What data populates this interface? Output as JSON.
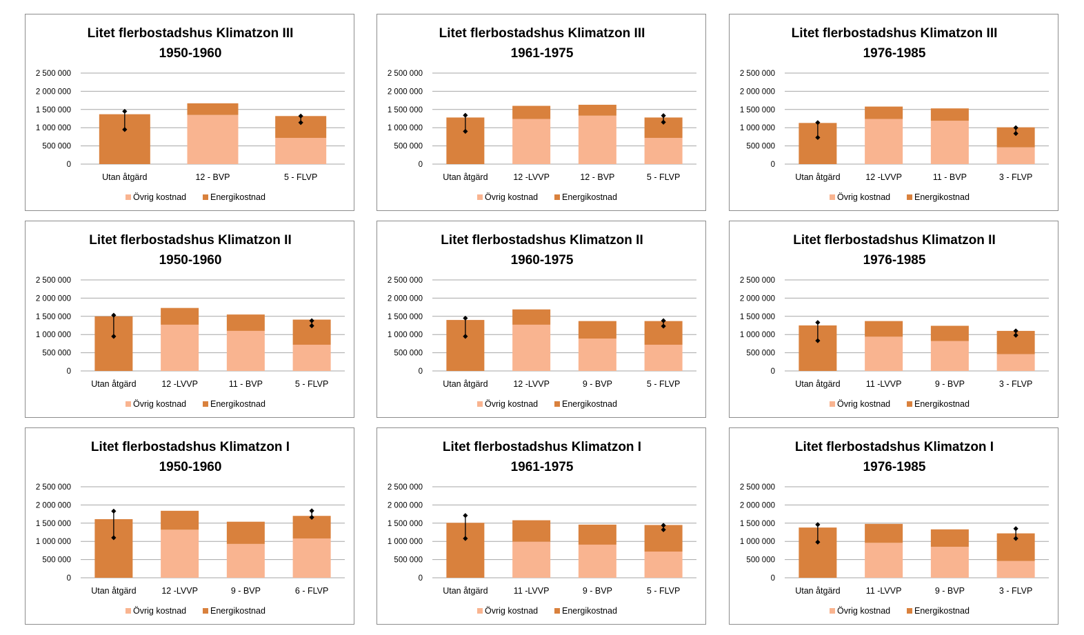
{
  "colors": {
    "ovrig": "#F9B490",
    "energi": "#D9813D",
    "grid": "#a6a6a6",
    "marker": "#000000"
  },
  "chart_data": [
    {
      "type": "bar",
      "stacked": true,
      "title": [
        "Litet flerbostadshus Klimatzon III",
        "1950-1960"
      ],
      "categories": [
        "Utan åtgärd",
        "12 - BVP",
        "5 - FLVP"
      ],
      "series": [
        {
          "name": "Övrig kostnad",
          "values": [
            0,
            1350000,
            720000
          ]
        },
        {
          "name": "Energikostnad",
          "values": [
            1370000,
            320000,
            600000
          ]
        }
      ],
      "range_markers": [
        {
          "category": "Utan åtgärd",
          "low": 950000,
          "high": 1450000
        },
        {
          "category": "5 - FLVP",
          "low": 1140000,
          "high": 1320000
        }
      ],
      "yticks": [
        "0",
        "500 000",
        "1 000 000",
        "1 500 000",
        "2 000 000",
        "2 500 000"
      ],
      "ylim": [
        0,
        2500000
      ],
      "grid": true,
      "legend": "bottom"
    },
    {
      "type": "bar",
      "stacked": true,
      "title": [
        "Litet flerbostadshus Klimatzon III",
        "1961-1975"
      ],
      "categories": [
        "Utan åtgärd",
        "12 -LVVP",
        "12 - BVP",
        "5 - FLVP"
      ],
      "series": [
        {
          "name": "Övrig kostnad",
          "values": [
            0,
            1240000,
            1330000,
            720000
          ]
        },
        {
          "name": "Energikostnad",
          "values": [
            1280000,
            360000,
            300000,
            560000
          ]
        }
      ],
      "range_markers": [
        {
          "category": "Utan åtgärd",
          "low": 900000,
          "high": 1340000
        },
        {
          "category": "5 - FLVP",
          "low": 1150000,
          "high": 1330000
        }
      ],
      "yticks": [
        "0",
        "500 000",
        "1 000 000",
        "1 500 000",
        "2 000 000",
        "2 500 000"
      ],
      "ylim": [
        0,
        2500000
      ],
      "grid": true,
      "legend": "bottom"
    },
    {
      "type": "bar",
      "stacked": true,
      "title": [
        "Litet flerbostadshus Klimatzon III",
        "1976-1985"
      ],
      "categories": [
        "Utan åtgärd",
        "12 -LVVP",
        "11 - BVP",
        "3 - FLVP"
      ],
      "series": [
        {
          "name": "Övrig kostnad",
          "values": [
            0,
            1240000,
            1190000,
            460000
          ]
        },
        {
          "name": "Energikostnad",
          "values": [
            1130000,
            340000,
            340000,
            550000
          ]
        }
      ],
      "range_markers": [
        {
          "category": "Utan åtgärd",
          "low": 730000,
          "high": 1140000
        },
        {
          "category": "3 - FLVP",
          "low": 840000,
          "high": 1000000
        }
      ],
      "yticks": [
        "0",
        "500 000",
        "1 000 000",
        "1 500 000",
        "2 000 000",
        "2 500 000"
      ],
      "ylim": [
        0,
        2500000
      ],
      "grid": true,
      "legend": "bottom"
    },
    {
      "type": "bar",
      "stacked": true,
      "title": [
        "Litet flerbostadshus Klimatzon II",
        "1950-1960"
      ],
      "categories": [
        "Utan åtgärd",
        "12 -LVVP",
        "11 - BVP",
        "5 - FLVP"
      ],
      "series": [
        {
          "name": "Övrig kostnad",
          "values": [
            0,
            1270000,
            1100000,
            720000
          ]
        },
        {
          "name": "Energikostnad",
          "values": [
            1500000,
            460000,
            450000,
            690000
          ]
        }
      ],
      "range_markers": [
        {
          "category": "Utan åtgärd",
          "low": 950000,
          "high": 1530000
        },
        {
          "category": "5 - FLVP",
          "low": 1240000,
          "high": 1380000
        }
      ],
      "yticks": [
        "0",
        "500 000",
        "1 000 000",
        "1 500 000",
        "2 000 000",
        "2 500 000"
      ],
      "ylim": [
        0,
        2500000
      ],
      "grid": true,
      "legend": "bottom"
    },
    {
      "type": "bar",
      "stacked": true,
      "title": [
        "Litet flerbostadshus Klimatzon II",
        "1960-1975"
      ],
      "categories": [
        "Utan åtgärd",
        "12 -LVVP",
        "9 - BVP",
        "5 - FLVP"
      ],
      "series": [
        {
          "name": "Övrig kostnad",
          "values": [
            0,
            1270000,
            890000,
            720000
          ]
        },
        {
          "name": "Energikostnad",
          "values": [
            1400000,
            420000,
            480000,
            650000
          ]
        }
      ],
      "range_markers": [
        {
          "category": "Utan åtgärd",
          "low": 950000,
          "high": 1450000
        },
        {
          "category": "5 - FLVP",
          "low": 1230000,
          "high": 1380000
        }
      ],
      "yticks": [
        "0",
        "500 000",
        "1 000 000",
        "1 500 000",
        "2 000 000",
        "2 500 000"
      ],
      "ylim": [
        0,
        2500000
      ],
      "grid": true,
      "legend": "bottom"
    },
    {
      "type": "bar",
      "stacked": true,
      "title": [
        "Litet flerbostadshus Klimatzon II",
        "1976-1985"
      ],
      "categories": [
        "Utan åtgärd",
        "11 -LVVP",
        "9 - BVP",
        "3 - FLVP"
      ],
      "series": [
        {
          "name": "Övrig kostnad",
          "values": [
            0,
            940000,
            820000,
            460000
          ]
        },
        {
          "name": "Energikostnad",
          "values": [
            1250000,
            430000,
            420000,
            640000
          ]
        }
      ],
      "range_markers": [
        {
          "category": "Utan åtgärd",
          "low": 830000,
          "high": 1330000
        },
        {
          "category": "3 - FLVP",
          "low": 980000,
          "high": 1100000
        }
      ],
      "yticks": [
        "0",
        "500 000",
        "1 000 000",
        "1 500 000",
        "2 000 000",
        "2 500 000"
      ],
      "ylim": [
        0,
        2500000
      ],
      "grid": true,
      "legend": "bottom"
    },
    {
      "type": "bar",
      "stacked": true,
      "title": [
        "Litet flerbostadshus Klimatzon I",
        "1950-1960"
      ],
      "categories": [
        "Utan åtgärd",
        "12 -LVVP",
        "9 - BVP",
        "6 - FLVP"
      ],
      "series": [
        {
          "name": "Övrig kostnad",
          "values": [
            0,
            1320000,
            930000,
            1080000
          ]
        },
        {
          "name": "Energikostnad",
          "values": [
            1610000,
            520000,
            610000,
            620000
          ]
        }
      ],
      "range_markers": [
        {
          "category": "Utan åtgärd",
          "low": 1100000,
          "high": 1830000
        },
        {
          "category": "6 - FLVP",
          "low": 1660000,
          "high": 1840000
        }
      ],
      "yticks": [
        "0",
        "500 000",
        "1 000 000",
        "1 500 000",
        "2 000 000",
        "2 500 000"
      ],
      "ylim": [
        0,
        2500000
      ],
      "grid": true,
      "legend": "bottom"
    },
    {
      "type": "bar",
      "stacked": true,
      "title": [
        "Litet flerbostadshus Klimatzon I",
        "1961-1975"
      ],
      "categories": [
        "Utan åtgärd",
        "11 -LVVP",
        "9 - BVP",
        "5 - FLVP"
      ],
      "series": [
        {
          "name": "Övrig kostnad",
          "values": [
            0,
            990000,
            910000,
            720000
          ]
        },
        {
          "name": "Energikostnad",
          "values": [
            1510000,
            590000,
            550000,
            730000
          ]
        }
      ],
      "range_markers": [
        {
          "category": "Utan åtgärd",
          "low": 1080000,
          "high": 1710000
        },
        {
          "category": "5 - FLVP",
          "low": 1320000,
          "high": 1440000
        }
      ],
      "yticks": [
        "0",
        "500 000",
        "1 000 000",
        "1 500 000",
        "2 000 000",
        "2 500 000"
      ],
      "ylim": [
        0,
        2500000
      ],
      "grid": true,
      "legend": "bottom"
    },
    {
      "type": "bar",
      "stacked": true,
      "title": [
        "Litet flerbostadshus Klimatzon I",
        "1976-1985"
      ],
      "categories": [
        "Utan åtgärd",
        "11 -LVVP",
        "9 - BVP",
        "3 - FLVP"
      ],
      "series": [
        {
          "name": "Övrig kostnad",
          "values": [
            0,
            960000,
            850000,
            460000
          ]
        },
        {
          "name": "Energikostnad",
          "values": [
            1380000,
            520000,
            480000,
            760000
          ]
        }
      ],
      "range_markers": [
        {
          "category": "Utan åtgärd",
          "low": 980000,
          "high": 1460000
        },
        {
          "category": "3 - FLVP",
          "low": 1080000,
          "high": 1350000
        }
      ],
      "yticks": [
        "0",
        "500 000",
        "1 000 000",
        "1 500 000",
        "2 000 000",
        "2 500 000"
      ],
      "ylim": [
        0,
        2500000
      ],
      "grid": true,
      "legend": "bottom"
    }
  ]
}
